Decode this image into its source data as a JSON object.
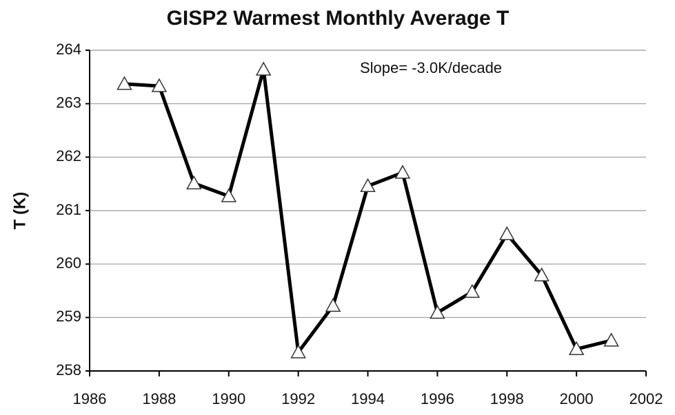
{
  "chart_data": {
    "type": "line",
    "title": "GISP2 Warmest Monthly Average T",
    "y_label": "T (K)",
    "annotation": "Slope= -3.0K/decade",
    "x": [
      1987,
      1988,
      1989,
      1990,
      1991,
      1992,
      1993,
      1994,
      1995,
      1996,
      1997,
      1998,
      1999,
      2000,
      2001
    ],
    "series": [
      {
        "color": "#000000",
        "marker": "triangle",
        "values": [
          263.37,
          263.33,
          261.51,
          261.27,
          263.64,
          258.35,
          259.22,
          261.46,
          261.71,
          259.09,
          259.48,
          260.56,
          259.79,
          258.41,
          258.57
        ]
      }
    ],
    "xlim": [
      1986,
      2002
    ],
    "xticks": [
      1986,
      1988,
      1990,
      1992,
      1994,
      1996,
      1998,
      2000,
      2002
    ],
    "ylim": [
      258,
      264
    ],
    "yticks": [
      258,
      259,
      260,
      261,
      262,
      263,
      264
    ],
    "grid": true
  }
}
